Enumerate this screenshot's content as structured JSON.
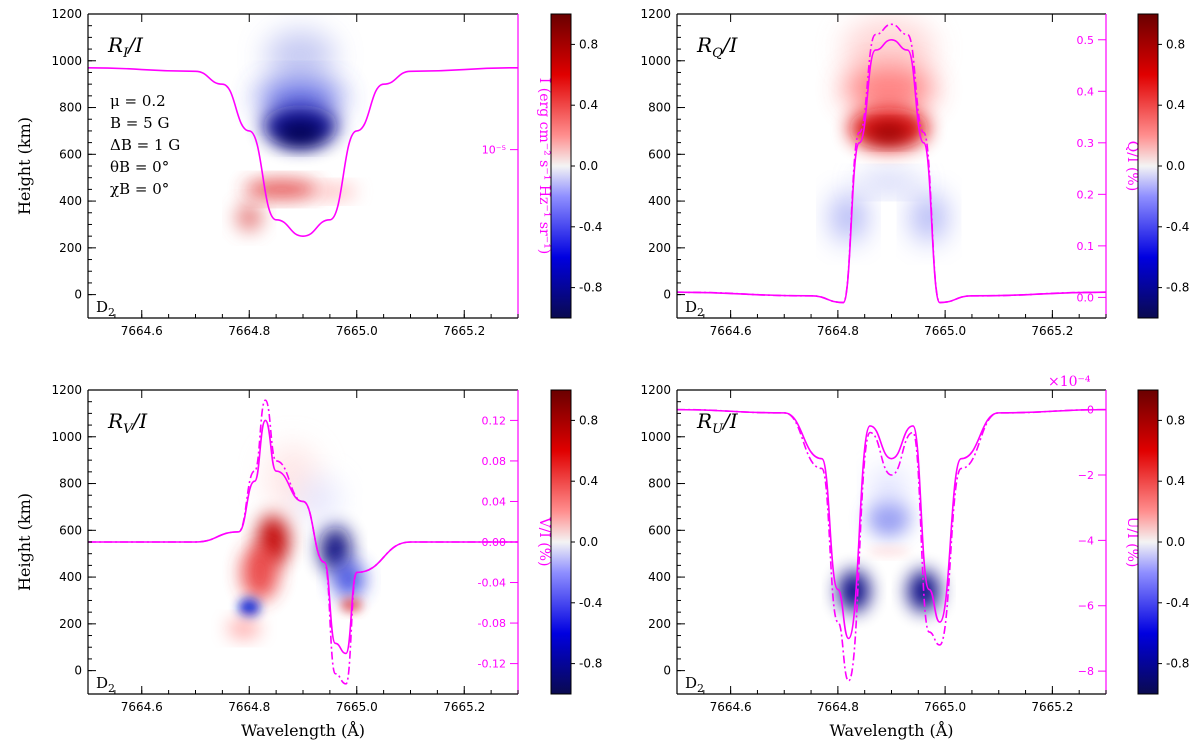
{
  "chart_data": {
    "type": "heatmap",
    "x_label": "Wavelength (Å)",
    "y_label": "Height (km)",
    "x_ticks": [
      "7664.6",
      "7664.8",
      "7665.0",
      "7665.2"
    ],
    "x_tick_values": [
      7664.6,
      7664.8,
      7665.0,
      7665.2
    ],
    "y_ticks": [
      "0",
      "200",
      "400",
      "600",
      "800",
      "1000",
      "1200"
    ],
    "y_tick_values": [
      0,
      200,
      400,
      600,
      800,
      1000,
      1200
    ],
    "xlim": [
      7664.5,
      7665.3
    ],
    "ylim": [
      -100,
      1200
    ],
    "colorbar_ticks": [
      "0.8",
      "0.4",
      "0.0",
      "-0.4",
      "-0.8"
    ],
    "colorbar_values": [
      0.8,
      0.4,
      0.0,
      -0.4,
      -0.8
    ],
    "colorbar_range": [
      -1,
      1
    ],
    "colors": {
      "positive": "#8b0000",
      "negative": "#0a0a5a",
      "profile": "#ff00ff"
    },
    "line_label": "D",
    "line_label_sub": "2",
    "panels": [
      {
        "id": "RI",
        "title": "R",
        "title_sub": "I",
        "title_suffix": "/I",
        "params": [
          "μ = 0.2",
          "B = 5 G",
          "ΔB = 1 G",
          "θB = 0°",
          "χB = 0°"
        ],
        "right_axis_label": "I (erg cm⁻² s⁻¹ Hz⁻¹ sr⁻¹)",
        "right_ticks": [
          "10⁻⁵"
        ],
        "right_tick_values": [
          620
        ],
        "profile_solid": {
          "x": [
            7664.5,
            7664.7,
            7664.75,
            7664.8,
            7664.85,
            7664.9,
            7664.95,
            7665.0,
            7665.05,
            7665.1,
            7665.3
          ],
          "y": [
            970,
            955,
            900,
            700,
            320,
            250,
            320,
            700,
            900,
            955,
            970
          ]
        }
      },
      {
        "id": "RQ",
        "title": "R",
        "title_sub": "Q",
        "title_suffix": "/I",
        "params": [],
        "right_axis_label": "Q/I (%)",
        "right_ticks": [
          "0.0",
          "0.1",
          "0.2",
          "0.3",
          "0.4",
          "0.5"
        ],
        "right_tick_values": [
          0.0,
          0.1,
          0.2,
          0.3,
          0.4,
          0.5
        ],
        "right_lim": [
          -0.04,
          0.55
        ],
        "profile_solid": {
          "x": [
            7664.5,
            7664.75,
            7664.81,
            7664.84,
            7664.87,
            7664.9,
            7664.93,
            7664.96,
            7664.99,
            7665.05,
            7665.3
          ],
          "y": [
            0.01,
            0.003,
            -0.01,
            0.3,
            0.48,
            0.5,
            0.48,
            0.3,
            -0.01,
            0.003,
            0.01
          ]
        },
        "profile_dashdot": {
          "x": [
            7664.5,
            7664.75,
            7664.81,
            7664.84,
            7664.87,
            7664.9,
            7664.93,
            7664.96,
            7664.99,
            7665.05,
            7665.3
          ],
          "y": [
            0.01,
            0.003,
            -0.01,
            0.32,
            0.51,
            0.53,
            0.51,
            0.32,
            -0.01,
            0.003,
            0.01
          ]
        }
      },
      {
        "id": "RV",
        "title": "R",
        "title_sub": "V",
        "title_suffix": "/I",
        "params": [],
        "right_axis_label": "V/I (%)",
        "right_ticks": [
          "0.12",
          "0.08",
          "0.04",
          "0.00",
          "-0.04",
          "-0.08",
          "-0.12"
        ],
        "right_tick_values": [
          0.12,
          0.08,
          0.04,
          0.0,
          -0.04,
          -0.08,
          -0.12
        ],
        "right_lim": [
          -0.15,
          0.15
        ],
        "profile_solid": {
          "x": [
            7664.5,
            7664.7,
            7664.78,
            7664.81,
            7664.83,
            7664.85,
            7664.9,
            7664.94,
            7664.96,
            7664.98,
            7665.0,
            7665.1,
            7665.3
          ],
          "y": [
            0.0,
            0.0,
            0.01,
            0.06,
            0.12,
            0.07,
            0.04,
            -0.02,
            -0.1,
            -0.11,
            -0.03,
            0.0,
            0.0
          ]
        },
        "profile_dashdot": {
          "x": [
            7664.5,
            7664.7,
            7664.78,
            7664.81,
            7664.83,
            7664.85,
            7664.9,
            7664.94,
            7664.96,
            7664.98,
            7665.0,
            7665.1,
            7665.3
          ],
          "y": [
            0.0,
            0.0,
            0.01,
            0.07,
            0.14,
            0.08,
            0.04,
            -0.02,
            -0.13,
            -0.14,
            -0.03,
            0.0,
            0.0
          ]
        }
      },
      {
        "id": "RU",
        "title": "R",
        "title_sub": "U",
        "title_suffix": "/I",
        "params": [],
        "right_axis_label": "U/I (%)",
        "right_ticks": [
          "0",
          "−2",
          "−4",
          "−6",
          "−8"
        ],
        "right_tick_values": [
          0,
          -2,
          -4,
          -6,
          -8
        ],
        "right_lim": [
          -8.7,
          0.6
        ],
        "right_scale_label": "×10⁻⁴",
        "profile_solid": {
          "x": [
            7664.5,
            7664.7,
            7664.77,
            7664.8,
            7664.82,
            7664.86,
            7664.9,
            7664.94,
            7664.97,
            7664.99,
            7665.03,
            7665.1,
            7665.3
          ],
          "y": [
            0.0,
            -0.1,
            -1.5,
            -5.5,
            -7.0,
            -0.5,
            -1.5,
            -0.5,
            -5.5,
            -6.5,
            -1.5,
            -0.1,
            0.0
          ]
        },
        "profile_dashdot": {
          "x": [
            7664.5,
            7664.7,
            7664.77,
            7664.8,
            7664.82,
            7664.86,
            7664.9,
            7664.94,
            7664.97,
            7664.99,
            7665.03,
            7665.1,
            7665.3
          ],
          "y": [
            0.0,
            -0.1,
            -1.8,
            -6.5,
            -8.3,
            -0.7,
            -2.0,
            -0.7,
            -6.8,
            -7.2,
            -1.8,
            -0.1,
            0.0
          ]
        }
      }
    ]
  }
}
